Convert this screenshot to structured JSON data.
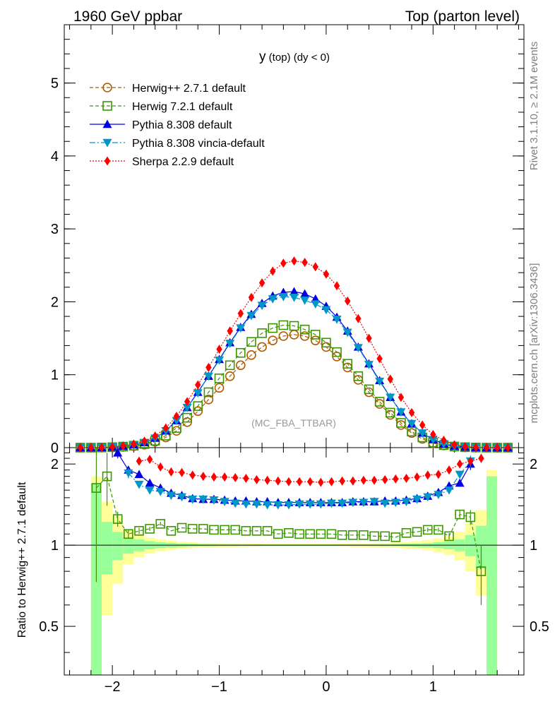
{
  "header": {
    "left": "1960 GeV ppbar",
    "right": "Top (parton level)"
  },
  "side_labels": {
    "rivet": "Rivet 3.1.10, ≥ 2.1M events",
    "mcplots": "mcplots.cern.ch [arXiv:1306.3436]"
  },
  "colors": {
    "herwig_pp": "#b05a00",
    "herwig7": "#3c9600",
    "pythia": "#0000e0",
    "vincia": "#0096c8",
    "sherpa": "#ff0000",
    "band_green": "#99ff99",
    "band_yellow": "#ffff99"
  },
  "chart_data": [
    {
      "type": "line",
      "title": "y (top) (dy < 0)",
      "watermark": "(MC_FBA_TTBAR)",
      "xlim": [
        -2.45,
        1.85
      ],
      "ylim": [
        0,
        5.8
      ],
      "yticks": [
        0,
        1,
        2,
        3,
        4,
        5
      ],
      "ytick_labels": [
        "0",
        "1",
        "2",
        "3",
        "4",
        "5"
      ],
      "legend_position": "top-left",
      "x": [
        -2.3,
        -2.2,
        -2.1,
        -2.0,
        -1.9,
        -1.8,
        -1.7,
        -1.6,
        -1.5,
        -1.4,
        -1.3,
        -1.2,
        -1.1,
        -1.0,
        -0.9,
        -0.8,
        -0.7,
        -0.6,
        -0.5,
        -0.4,
        -0.3,
        -0.2,
        -0.1,
        0.0,
        0.1,
        0.2,
        0.3,
        0.4,
        0.5,
        0.6,
        0.7,
        0.8,
        0.9,
        1.0,
        1.1,
        1.2,
        1.3,
        1.4,
        1.5,
        1.6,
        1.7
      ],
      "series": [
        {
          "key": "herwig_pp",
          "name": "Herwig++ 2.7.1 default",
          "marker": "circle-open",
          "dash": "5,3",
          "values": [
            0.0,
            0.0,
            0.001,
            0.004,
            0.01,
            0.02,
            0.04,
            0.08,
            0.14,
            0.23,
            0.35,
            0.5,
            0.66,
            0.82,
            0.98,
            1.13,
            1.27,
            1.38,
            1.47,
            1.53,
            1.55,
            1.53,
            1.47,
            1.38,
            1.25,
            1.1,
            0.93,
            0.76,
            0.6,
            0.45,
            0.31,
            0.2,
            0.12,
            0.06,
            0.03,
            0.01,
            0.004,
            0.001,
            0.0,
            0.0,
            0.0
          ]
        },
        {
          "key": "herwig7",
          "name": "Herwig 7.2.1 default",
          "marker": "square-open",
          "dash": "5,3",
          "values": [
            0.0,
            0.0,
            0.002,
            0.006,
            0.014,
            0.027,
            0.05,
            0.095,
            0.165,
            0.27,
            0.41,
            0.57,
            0.76,
            0.95,
            1.13,
            1.3,
            1.45,
            1.57,
            1.64,
            1.68,
            1.67,
            1.62,
            1.55,
            1.44,
            1.31,
            1.15,
            0.98,
            0.8,
            0.63,
            0.48,
            0.34,
            0.22,
            0.14,
            0.07,
            0.035,
            0.015,
            0.006,
            0.002,
            0.0,
            0.0,
            0.0
          ]
        },
        {
          "key": "pythia",
          "name": "Pythia 8.308 default",
          "marker": "triangle-up",
          "dash": "",
          "values": [
            0.0,
            0.0,
            0.002,
            0.008,
            0.02,
            0.038,
            0.07,
            0.13,
            0.23,
            0.37,
            0.55,
            0.76,
            0.98,
            1.21,
            1.44,
            1.65,
            1.83,
            1.98,
            2.08,
            2.13,
            2.14,
            2.11,
            2.04,
            1.94,
            1.79,
            1.6,
            1.38,
            1.15,
            0.92,
            0.69,
            0.49,
            0.33,
            0.2,
            0.11,
            0.05,
            0.02,
            0.008,
            0.002,
            0.0,
            0.0,
            0.0
          ]
        },
        {
          "key": "vincia",
          "name": "Pythia 8.308 vincia-default",
          "marker": "triangle-down",
          "dash": "8,3,2,3",
          "values": [
            0.0,
            0.0,
            0.002,
            0.008,
            0.02,
            0.038,
            0.07,
            0.13,
            0.23,
            0.37,
            0.55,
            0.75,
            0.98,
            1.2,
            1.43,
            1.64,
            1.81,
            1.95,
            2.04,
            2.07,
            2.06,
            2.02,
            1.97,
            1.89,
            1.76,
            1.58,
            1.37,
            1.14,
            0.91,
            0.69,
            0.49,
            0.33,
            0.2,
            0.11,
            0.05,
            0.02,
            0.008,
            0.002,
            0.0,
            0.0,
            0.0
          ]
        },
        {
          "key": "sherpa",
          "name": "Sherpa 2.2.9 default",
          "marker": "diamond",
          "dash": "2,2",
          "values": [
            0.0,
            0.001,
            0.003,
            0.01,
            0.025,
            0.05,
            0.09,
            0.16,
            0.27,
            0.43,
            0.63,
            0.86,
            1.1,
            1.35,
            1.6,
            1.84,
            2.06,
            2.26,
            2.42,
            2.53,
            2.56,
            2.54,
            2.48,
            2.38,
            2.22,
            2.01,
            1.77,
            1.5,
            1.22,
            0.94,
            0.69,
            0.48,
            0.31,
            0.18,
            0.1,
            0.04,
            0.015,
            0.004,
            0.001,
            0.0,
            0.0
          ]
        }
      ]
    },
    {
      "type": "line",
      "ylabel": "Ratio to Herwig++ 2.7.1 default",
      "xlim": [
        -2.45,
        1.85
      ],
      "ylim": [
        0.33,
        2.3
      ],
      "yticks": [
        0.5,
        1,
        2
      ],
      "ytick_labels": [
        "0.5",
        "1",
        "2"
      ],
      "xticks": [
        -2,
        -1,
        0,
        1
      ],
      "xtick_labels": [
        "−2",
        "−1",
        "0",
        "1"
      ],
      "bands": {
        "x_edges": [
          -2.2,
          -2.1,
          -2.0,
          -1.9,
          -1.8,
          -1.7,
          -1.6,
          -1.5,
          -1.4,
          -1.3,
          -1.2,
          -1.1,
          -1.0,
          -0.9,
          -0.8,
          -0.7,
          -0.6,
          -0.5,
          -0.4,
          -0.3,
          -0.2,
          -0.1,
          0.0,
          0.1,
          0.2,
          0.3,
          0.4,
          0.5,
          0.6,
          0.7,
          0.8,
          0.9,
          1.0,
          1.1,
          1.2,
          1.3,
          1.4,
          1.5,
          1.6
        ],
        "yellow_half_width": [
          0.8,
          0.45,
          0.28,
          0.15,
          0.1,
          0.07,
          0.05,
          0.04,
          0.03,
          0.025,
          0.02,
          0.018,
          0.016,
          0.015,
          0.014,
          0.013,
          0.012,
          0.012,
          0.012,
          0.012,
          0.012,
          0.012,
          0.012,
          0.013,
          0.014,
          0.015,
          0.017,
          0.02,
          0.023,
          0.028,
          0.035,
          0.045,
          0.06,
          0.08,
          0.12,
          0.2,
          0.35,
          0.9
        ],
        "green_half_width": [
          0.7,
          0.22,
          0.12,
          0.07,
          0.05,
          0.035,
          0.025,
          0.02,
          0.015,
          0.012,
          0.01,
          0.009,
          0.008,
          0.008,
          0.007,
          0.007,
          0.006,
          0.006,
          0.006,
          0.006,
          0.006,
          0.006,
          0.006,
          0.006,
          0.007,
          0.007,
          0.008,
          0.009,
          0.01,
          0.012,
          0.015,
          0.018,
          0.025,
          0.035,
          0.05,
          0.09,
          0.18,
          0.8
        ]
      },
      "series": [
        {
          "key": "herwig7",
          "x": [
            -2.15,
            -2.05,
            -1.95,
            -1.85,
            -1.75,
            -1.65,
            -1.55,
            -1.45,
            -1.35,
            -1.25,
            -1.15,
            -1.05,
            -0.95,
            -0.85,
            -0.75,
            -0.65,
            -0.55,
            -0.45,
            -0.35,
            -0.25,
            -0.15,
            -0.05,
            0.05,
            0.15,
            0.25,
            0.35,
            0.45,
            0.55,
            0.65,
            0.75,
            0.85,
            0.95,
            1.05,
            1.15,
            1.25,
            1.35,
            1.45
          ],
          "values": [
            1.63,
            1.8,
            1.25,
            1.1,
            1.13,
            1.15,
            1.2,
            1.13,
            1.16,
            1.15,
            1.15,
            1.14,
            1.14,
            1.14,
            1.13,
            1.13,
            1.13,
            1.1,
            1.11,
            1.1,
            1.1,
            1.1,
            1.1,
            1.09,
            1.09,
            1.09,
            1.08,
            1.08,
            1.07,
            1.11,
            1.12,
            1.14,
            1.14,
            1.08,
            1.3,
            1.27,
            0.8
          ],
          "errors": [
            0.9,
            0.4,
            0.08,
            0.04,
            0.03,
            0.02,
            0.02,
            0.01,
            0.01,
            0.01,
            0.01,
            0.01,
            0.01,
            0.01,
            0.01,
            0.01,
            0.01,
            0.01,
            0.01,
            0.01,
            0.01,
            0.01,
            0.01,
            0.01,
            0.01,
            0.01,
            0.01,
            0.01,
            0.01,
            0.01,
            0.01,
            0.02,
            0.02,
            0.03,
            0.05,
            0.08,
            0.2
          ]
        },
        {
          "key": "pythia",
          "x": [
            -1.95,
            -1.85,
            -1.75,
            -1.65,
            -1.55,
            -1.45,
            -1.35,
            -1.25,
            -1.15,
            -1.05,
            -0.95,
            -0.85,
            -0.75,
            -0.65,
            -0.55,
            -0.45,
            -0.35,
            -0.25,
            -0.15,
            -0.05,
            0.05,
            0.15,
            0.25,
            0.35,
            0.45,
            0.55,
            0.65,
            0.75,
            0.85,
            0.95,
            1.05,
            1.15,
            1.25,
            1.35
          ],
          "values": [
            2.2,
            1.9,
            1.83,
            1.7,
            1.63,
            1.56,
            1.53,
            1.49,
            1.48,
            1.48,
            1.47,
            1.46,
            1.46,
            1.45,
            1.45,
            1.44,
            1.44,
            1.44,
            1.44,
            1.44,
            1.44,
            1.44,
            1.45,
            1.45,
            1.45,
            1.46,
            1.46,
            1.47,
            1.49,
            1.52,
            1.57,
            1.66,
            1.7,
            2.0
          ],
          "errors": [
            0.1,
            0.06,
            0.04,
            0.03,
            0.02,
            0.015,
            0.01,
            0.01,
            0.01,
            0.01,
            0.01,
            0.01,
            0.01,
            0.01,
            0.01,
            0.01,
            0.01,
            0.01,
            0.01,
            0.01,
            0.01,
            0.01,
            0.01,
            0.01,
            0.01,
            0.01,
            0.01,
            0.01,
            0.01,
            0.015,
            0.02,
            0.03,
            0.05,
            0.1
          ]
        },
        {
          "key": "vincia",
          "x": [
            -1.85,
            -1.75,
            -1.65,
            -1.55,
            -1.45,
            -1.35,
            -1.25,
            -1.15,
            -1.05,
            -0.95,
            -0.85,
            -0.75,
            -0.65,
            -0.55,
            -0.45,
            -0.35,
            -0.25,
            -0.15,
            -0.05,
            0.05,
            0.15,
            0.25,
            0.35,
            0.45,
            0.55,
            0.65,
            0.75,
            0.85,
            0.95,
            1.05,
            1.15,
            1.25,
            1.35
          ],
          "values": [
            1.85,
            1.68,
            1.6,
            1.58,
            1.53,
            1.51,
            1.48,
            1.48,
            1.47,
            1.45,
            1.43,
            1.42,
            1.42,
            1.41,
            1.41,
            1.41,
            1.42,
            1.42,
            1.42,
            1.43,
            1.43,
            1.44,
            1.44,
            1.45,
            1.43,
            1.44,
            1.45,
            1.48,
            1.51,
            1.54,
            1.6,
            1.83,
            2.05
          ],
          "errors": [
            0.08,
            0.05,
            0.03,
            0.02,
            0.015,
            0.01,
            0.01,
            0.01,
            0.01,
            0.01,
            0.01,
            0.01,
            0.01,
            0.01,
            0.01,
            0.01,
            0.01,
            0.01,
            0.01,
            0.01,
            0.01,
            0.01,
            0.01,
            0.01,
            0.01,
            0.01,
            0.01,
            0.01,
            0.01,
            0.02,
            0.03,
            0.05,
            0.1
          ]
        },
        {
          "key": "sherpa",
          "x": [
            -1.75,
            -1.65,
            -1.55,
            -1.45,
            -1.35,
            -1.25,
            -1.15,
            -1.05,
            -0.95,
            -0.85,
            -0.75,
            -0.65,
            -0.55,
            -0.45,
            -0.35,
            -0.25,
            -0.15,
            -0.05,
            0.05,
            0.15,
            0.25,
            0.35,
            0.45,
            0.55,
            0.65,
            0.75,
            0.85,
            0.95,
            1.05,
            1.15,
            1.25,
            1.35,
            1.45
          ],
          "values": [
            2.05,
            2.08,
            1.95,
            1.87,
            1.86,
            1.82,
            1.8,
            1.79,
            1.79,
            1.78,
            1.77,
            1.75,
            1.74,
            1.73,
            1.72,
            1.72,
            1.72,
            1.71,
            1.72,
            1.73,
            1.73,
            1.74,
            1.74,
            1.75,
            1.76,
            1.77,
            1.79,
            1.82,
            1.83,
            1.9,
            2.0,
            2.05,
            2.1
          ],
          "errors": [
            0.04,
            0.03,
            0.02,
            0.015,
            0.01,
            0.01,
            0.01,
            0.01,
            0.01,
            0.01,
            0.01,
            0.01,
            0.01,
            0.01,
            0.01,
            0.01,
            0.01,
            0.01,
            0.01,
            0.01,
            0.01,
            0.01,
            0.01,
            0.01,
            0.01,
            0.01,
            0.01,
            0.01,
            0.015,
            0.02,
            0.03,
            0.05,
            0.08
          ]
        }
      ]
    }
  ]
}
